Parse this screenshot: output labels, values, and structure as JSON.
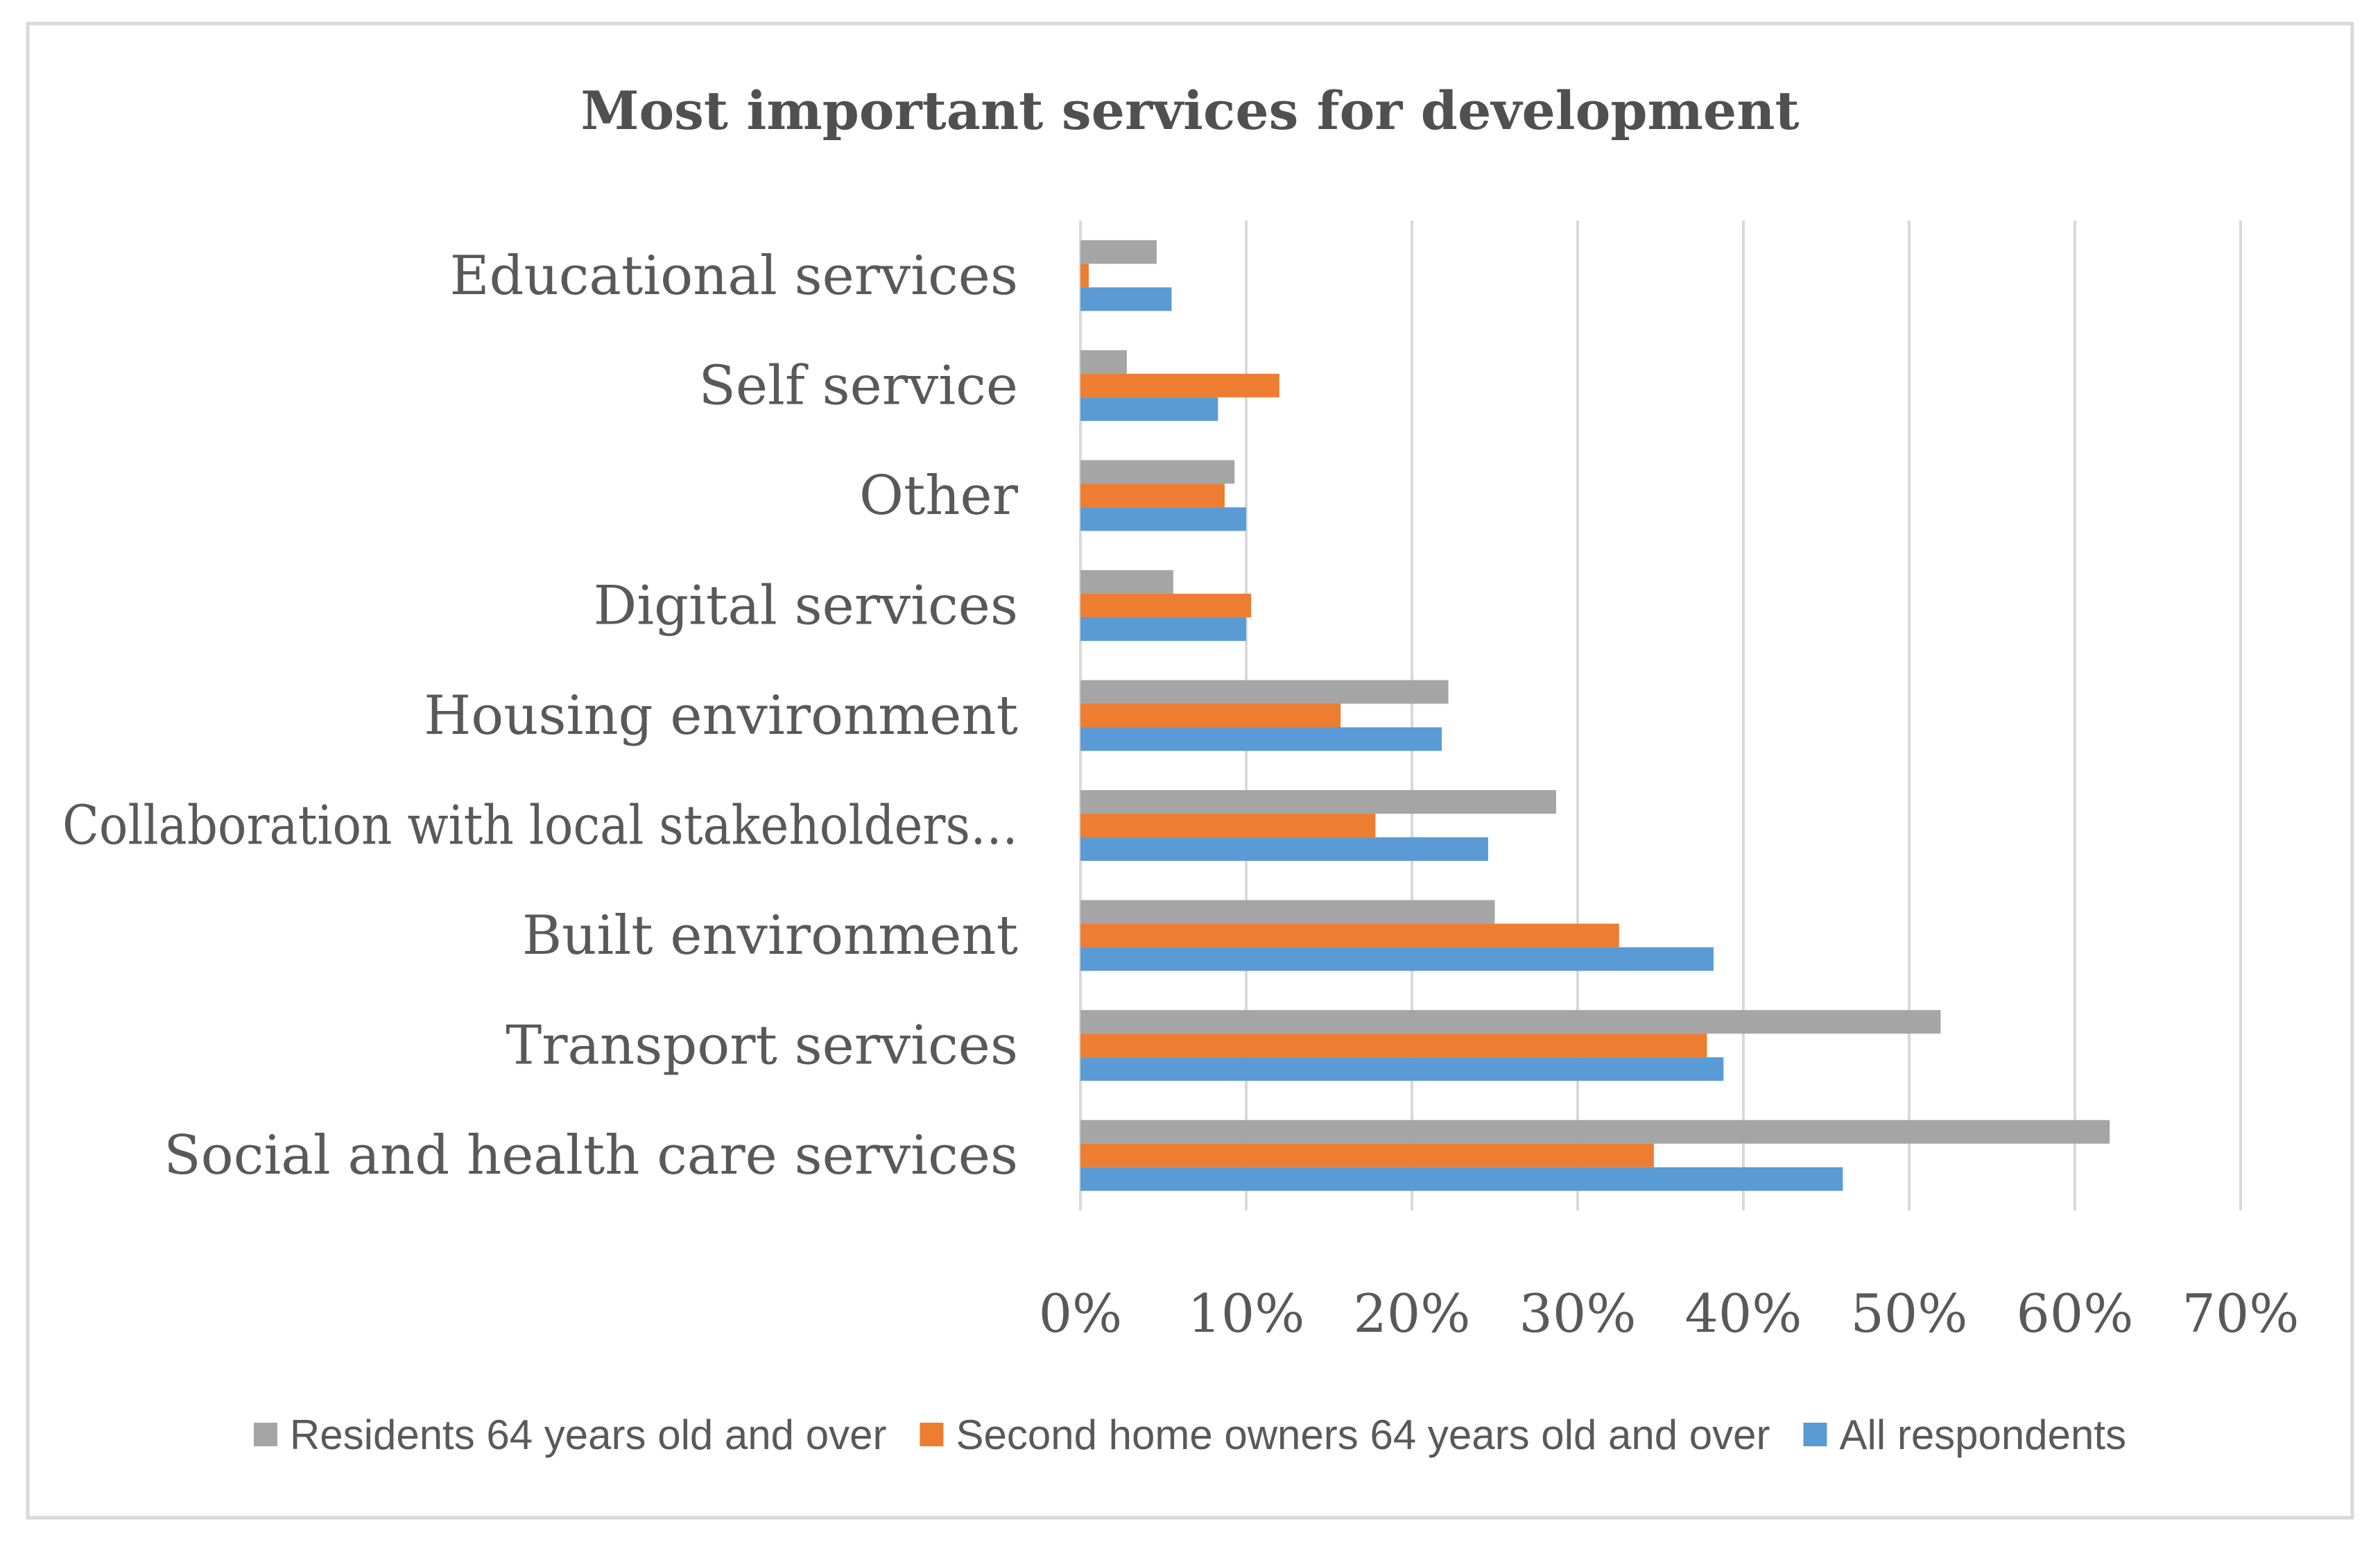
{
  "chart_data": {
    "type": "bar",
    "orientation": "horizontal",
    "title": "Most important services for development",
    "xlabel": "",
    "ylabel": "",
    "xlim": [
      0,
      70
    ],
    "x_ticks": [
      "0%",
      "10%",
      "20%",
      "30%",
      "40%",
      "50%",
      "60%",
      "70%"
    ],
    "grid": true,
    "legend_position": "bottom",
    "categories": [
      "Educational services",
      "Self service",
      "Other",
      "Digital services",
      "Housing environment",
      "Collaboration with local stakeholders…",
      "Built environment",
      "Transport services",
      "Social and health care services"
    ],
    "series": [
      {
        "name": "Residents 64 years old and over",
        "color": "#A5A5A5",
        "values": [
          4.6,
          2.8,
          9.3,
          5.6,
          22.2,
          28.7,
          25.0,
          51.9,
          62.1
        ]
      },
      {
        "name": "Second home owners 64 years old and over",
        "color": "#ED7D31",
        "values": [
          0.5,
          12.0,
          8.7,
          10.3,
          15.7,
          17.8,
          32.5,
          37.8,
          34.6
        ]
      },
      {
        "name": "All respondents",
        "color": "#5B9BD5",
        "values": [
          5.5,
          8.3,
          10.0,
          10.0,
          21.8,
          24.6,
          38.2,
          38.8,
          46.0
        ]
      }
    ]
  },
  "style": {
    "grid_color": "#D9D9D9",
    "frame_color": "#D9D9D9"
  }
}
